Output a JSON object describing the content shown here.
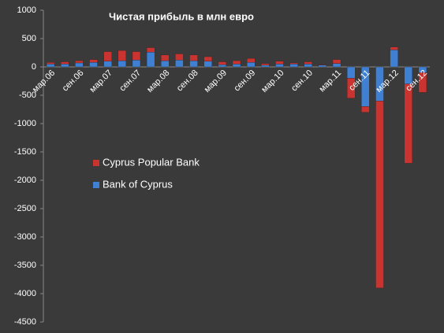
{
  "chart_data": {
    "type": "stacked_bar",
    "title": "Чистая прибыль в млн евро",
    "categories": [
      "мар.06",
      null,
      "сен.06",
      null,
      "мар.07",
      null,
      "сен.07",
      null,
      "мар.08",
      null,
      "сен.08",
      null,
      "мар.09",
      null,
      "сен.09",
      null,
      "мар.10",
      null,
      "сен.10",
      null,
      "мар.11",
      null,
      "сен.11",
      null,
      "мар.12",
      null,
      "сен.12"
    ],
    "series": [
      {
        "name": "Bank of Cyprus",
        "color": "#3f80d2",
        "values": [
          50,
          50,
          70,
          80,
          100,
          110,
          120,
          260,
          110,
          120,
          110,
          100,
          40,
          50,
          80,
          30,
          50,
          50,
          50,
          30,
          60,
          -200,
          -700,
          -600,
          300,
          -300,
          -100
        ]
      },
      {
        "name": "Cyprus Popular Bank",
        "color": "#c93330",
        "values": [
          30,
          40,
          40,
          50,
          170,
          180,
          150,
          80,
          100,
          110,
          100,
          80,
          50,
          60,
          70,
          30,
          50,
          20,
          40,
          10,
          70,
          -350,
          -100,
          -3300,
          50,
          -1400,
          -350
        ]
      }
    ],
    "ylim": [
      -4500,
      1000
    ],
    "yticks": [
      -4500,
      -4000,
      -3500,
      -3000,
      -2500,
      -2000,
      -1500,
      -1000,
      -500,
      0,
      500,
      1000
    ],
    "legend": "left"
  }
}
